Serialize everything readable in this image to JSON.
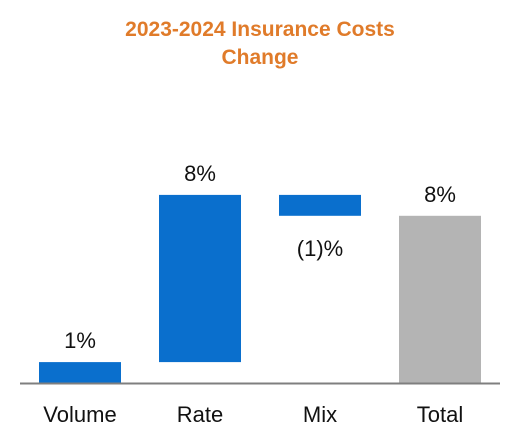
{
  "chart_data": {
    "type": "bar",
    "subtype": "waterfall",
    "title_lines": [
      "2023-2024 Insurance Costs",
      "Change"
    ],
    "categories": [
      "Volume",
      "Rate",
      "Mix",
      "Total"
    ],
    "values": [
      1,
      8,
      -1,
      8
    ],
    "data_labels": [
      "1%",
      "8%",
      "(1)%",
      "8%"
    ],
    "is_total": [
      false,
      false,
      false,
      true
    ],
    "unit": "%",
    "colors": {
      "increase": "#0A6FCD",
      "decrease": "#0A6FCD",
      "total": "#B4B4B4",
      "title": "#E07B2A",
      "axis": "#7F7F7F"
    },
    "grid": false,
    "legend": "none"
  }
}
